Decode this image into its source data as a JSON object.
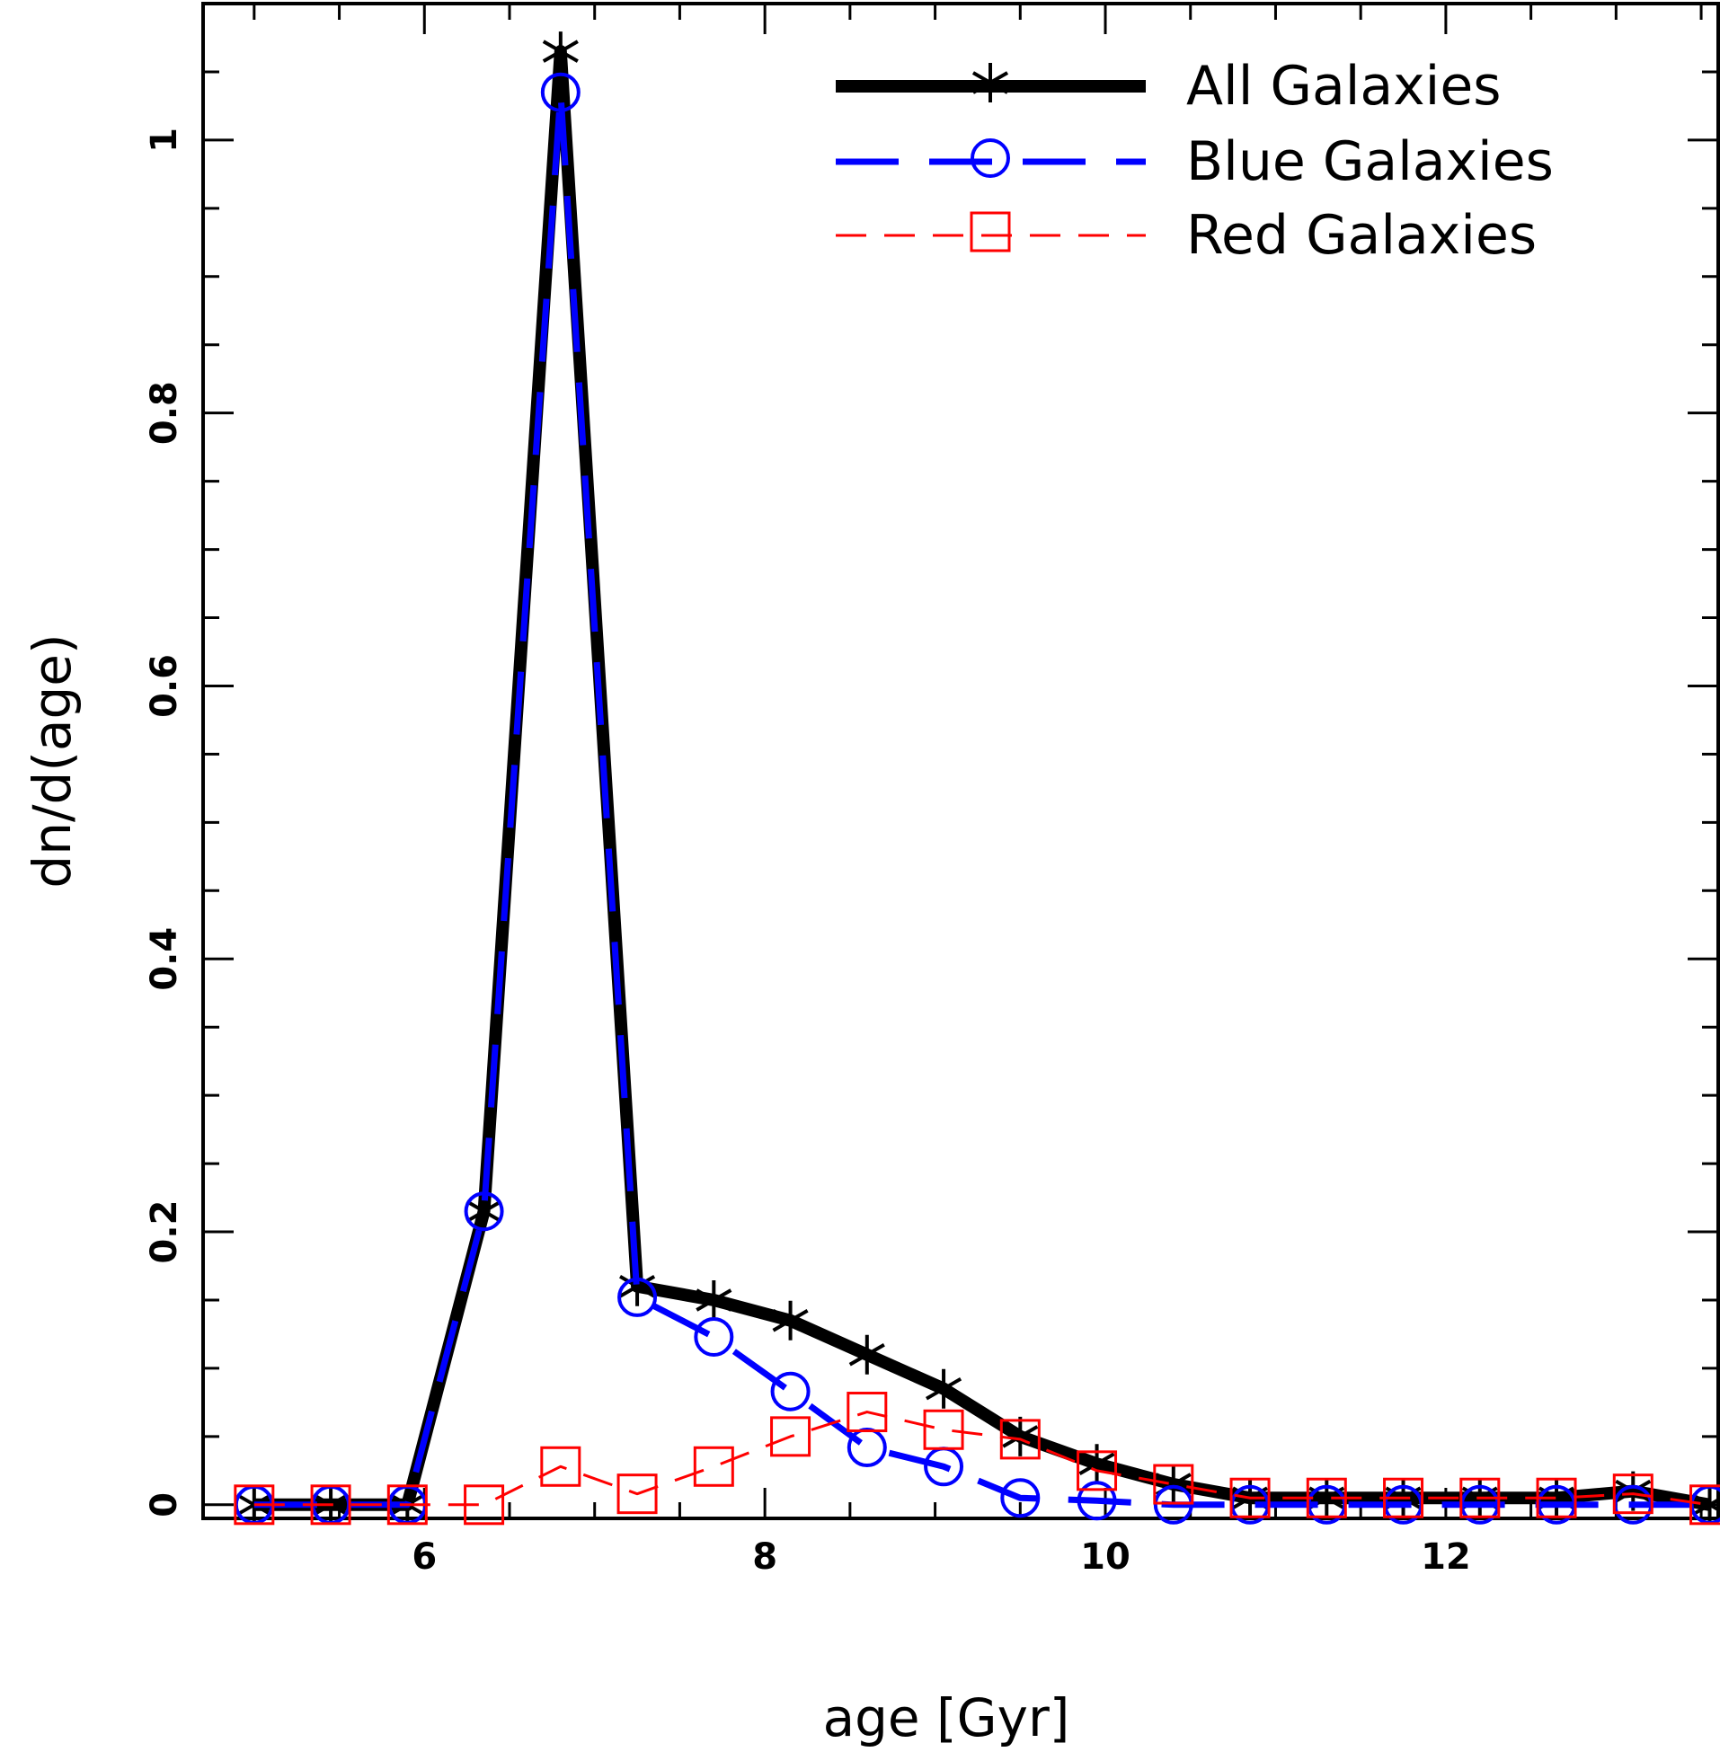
{
  "chart_data": {
    "type": "line",
    "title": "",
    "xlabel": "age [Gyr]",
    "ylabel": "dn/d(age)",
    "xlim": [
      4.7,
      13.6
    ],
    "ylim": [
      -0.01,
      1.1
    ],
    "xticks": [
      6,
      8,
      10,
      12
    ],
    "xtick_labels": [
      "6",
      "8",
      "10",
      "12"
    ],
    "yticks": [
      0,
      0.2,
      0.4,
      0.6,
      0.8,
      1
    ],
    "ytick_labels": [
      "0",
      "0.2",
      "0.4",
      "0.6",
      "0.8",
      "1"
    ],
    "legend_position": "top-right",
    "x": [
      5.0,
      5.45,
      5.9,
      6.35,
      6.8,
      7.25,
      7.7,
      8.15,
      8.6,
      9.05,
      9.5,
      9.95,
      10.4,
      10.85,
      11.3,
      11.75,
      12.2,
      12.65,
      13.1,
      13.55
    ],
    "series": [
      {
        "name": "All Galaxies",
        "color": "#000000",
        "marker": "asterisk",
        "line_style": "solid",
        "values": [
          0.0,
          0.0,
          0.0,
          0.215,
          1.065,
          0.16,
          0.15,
          0.135,
          0.11,
          0.085,
          0.05,
          0.03,
          0.015,
          0.005,
          0.005,
          0.005,
          0.005,
          0.005,
          0.01,
          0.0
        ]
      },
      {
        "name": "Blue Galaxies",
        "color": "#0000ff",
        "marker": "circle",
        "line_style": "long-dash",
        "values": [
          0.0,
          0.0,
          0.0,
          0.215,
          1.035,
          0.152,
          0.123,
          0.083,
          0.042,
          0.028,
          0.005,
          0.003,
          0.0,
          0.0,
          0.0,
          0.0,
          0.0,
          0.0,
          0.0,
          0.0
        ]
      },
      {
        "name": "Red Galaxies",
        "color": "#ff0000",
        "marker": "square",
        "line_style": "dash",
        "values": [
          0.0,
          0.0,
          0.0,
          0.0,
          0.028,
          0.008,
          0.028,
          0.05,
          0.068,
          0.055,
          0.048,
          0.025,
          0.015,
          0.005,
          0.005,
          0.005,
          0.005,
          0.005,
          0.008,
          0.0
        ]
      }
    ]
  }
}
